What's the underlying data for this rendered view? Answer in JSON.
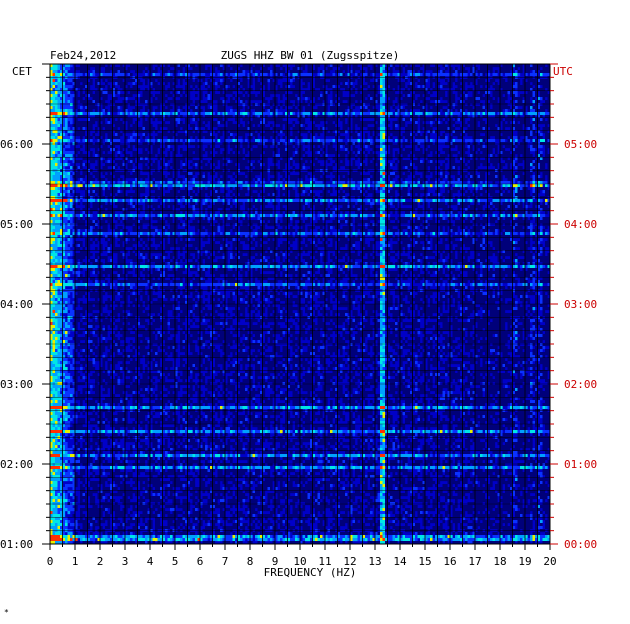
{
  "chart_data": {
    "type": "heatmap",
    "title": "ZUGS HHZ BW 01 (Zugsspitze)",
    "date_label": "Feb24,2012",
    "xlabel": "FREQUENCY (HZ)",
    "left_axis_title": "CET",
    "right_axis_title": "UTC",
    "x_ticks": [
      "0",
      "1",
      "2",
      "3",
      "4",
      "5",
      "6",
      "7",
      "8",
      "9",
      "10",
      "11",
      "12",
      "13",
      "14",
      "15",
      "16",
      "17",
      "18",
      "19",
      "20"
    ],
    "xlim": [
      0,
      20
    ],
    "left_time_ticks": [
      "06:00",
      "05:00",
      "04:00",
      "03:00",
      "02:00",
      "01:00"
    ],
    "right_time_ticks": [
      "05:00",
      "04:00",
      "03:00",
      "02:00",
      "01:00",
      "00:00"
    ],
    "time_range_cet": [
      "01:00",
      "07:00"
    ],
    "grid": true,
    "colormap": [
      "#00007a",
      "#0000c8",
      "#0a32ff",
      "#00a0ff",
      "#00e6e6",
      "#e6f000",
      "#ff3000"
    ],
    "features": {
      "persistent_line_hz": 13.3,
      "low_frequency_energy_hz": [
        0.1,
        1.0
      ],
      "faint_lines_hz": [
        18.6,
        19.3,
        19.6
      ]
    },
    "colors": {
      "background": "#0000c8",
      "grid": "#000000",
      "left_ticks": "#000000",
      "right_ticks": "#cc0000"
    }
  },
  "footer": {
    "mark": "*"
  }
}
